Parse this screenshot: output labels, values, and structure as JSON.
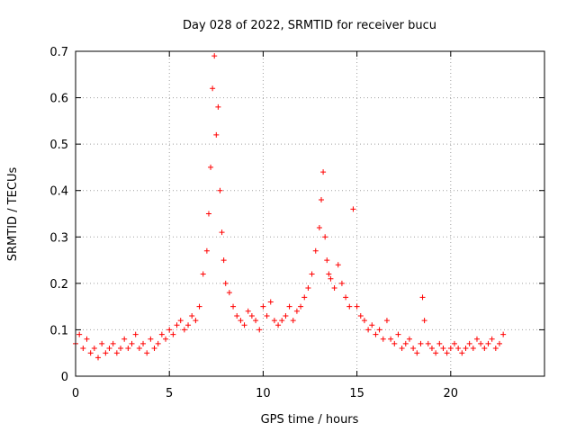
{
  "chart_data": {
    "type": "scatter",
    "title": "Day 028 of 2022, SRMTID for receiver bucu",
    "xlabel": "GPS time / hours",
    "ylabel": "SRMTID / TECUs",
    "xlim": [
      0,
      25
    ],
    "ylim": [
      0,
      0.7
    ],
    "x_ticks": [
      0,
      5,
      10,
      15,
      20
    ],
    "x_tick_labels": [
      "0",
      "5",
      "10",
      "15",
      "20"
    ],
    "y_ticks": [
      0,
      0.1,
      0.2,
      0.3,
      0.4,
      0.5,
      0.6,
      0.7
    ],
    "y_tick_labels": [
      "0",
      "0.1",
      "0.2",
      "0.3",
      "0.4",
      "0.5",
      "0.6",
      "0.7"
    ],
    "grid": true,
    "marker": "+",
    "color": "#ff0000",
    "series": [
      {
        "name": "SRMTID",
        "x": [
          0.0,
          0.2,
          0.4,
          0.6,
          0.8,
          1.0,
          1.2,
          1.4,
          1.6,
          1.8,
          2.0,
          2.2,
          2.4,
          2.6,
          2.8,
          3.0,
          3.2,
          3.4,
          3.6,
          3.8,
          4.0,
          4.2,
          4.4,
          4.6,
          4.8,
          5.0,
          5.2,
          5.4,
          5.6,
          5.8,
          6.0,
          6.2,
          6.4,
          6.6,
          6.8,
          7.0,
          7.1,
          7.2,
          7.3,
          7.4,
          7.5,
          7.6,
          7.7,
          7.8,
          7.9,
          8.0,
          8.2,
          8.4,
          8.6,
          8.8,
          9.0,
          9.2,
          9.4,
          9.6,
          9.8,
          10.0,
          10.2,
          10.4,
          10.6,
          10.8,
          11.0,
          11.2,
          11.4,
          11.6,
          11.8,
          12.0,
          12.2,
          12.4,
          12.6,
          12.8,
          13.0,
          13.1,
          13.2,
          13.3,
          13.4,
          13.5,
          13.6,
          13.8,
          14.0,
          14.2,
          14.4,
          14.6,
          14.8,
          15.0,
          15.2,
          15.4,
          15.6,
          15.8,
          16.0,
          16.2,
          16.4,
          16.6,
          16.8,
          17.0,
          17.2,
          17.4,
          17.6,
          17.8,
          18.0,
          18.2,
          18.4,
          18.5,
          18.6,
          18.8,
          19.0,
          19.2,
          19.4,
          19.6,
          19.8,
          20.0,
          20.2,
          20.4,
          20.6,
          20.8,
          21.0,
          21.2,
          21.4,
          21.6,
          21.8,
          22.0,
          22.2,
          22.4,
          22.6,
          22.8
        ],
        "y": [
          0.07,
          0.09,
          0.06,
          0.08,
          0.05,
          0.06,
          0.04,
          0.07,
          0.05,
          0.06,
          0.07,
          0.05,
          0.06,
          0.08,
          0.06,
          0.07,
          0.09,
          0.06,
          0.07,
          0.05,
          0.08,
          0.06,
          0.07,
          0.09,
          0.08,
          0.1,
          0.09,
          0.11,
          0.12,
          0.1,
          0.11,
          0.13,
          0.12,
          0.15,
          0.22,
          0.27,
          0.35,
          0.45,
          0.62,
          0.69,
          0.52,
          0.58,
          0.4,
          0.31,
          0.25,
          0.2,
          0.18,
          0.15,
          0.13,
          0.12,
          0.11,
          0.14,
          0.13,
          0.12,
          0.1,
          0.15,
          0.13,
          0.16,
          0.12,
          0.11,
          0.12,
          0.13,
          0.15,
          0.12,
          0.14,
          0.15,
          0.17,
          0.19,
          0.22,
          0.27,
          0.32,
          0.38,
          0.44,
          0.3,
          0.25,
          0.22,
          0.21,
          0.19,
          0.24,
          0.2,
          0.17,
          0.15,
          0.36,
          0.15,
          0.13,
          0.12,
          0.1,
          0.11,
          0.09,
          0.1,
          0.08,
          0.12,
          0.08,
          0.07,
          0.09,
          0.06,
          0.07,
          0.08,
          0.06,
          0.05,
          0.07,
          0.17,
          0.12,
          0.07,
          0.06,
          0.05,
          0.07,
          0.06,
          0.05,
          0.06,
          0.07,
          0.06,
          0.05,
          0.06,
          0.07,
          0.06,
          0.08,
          0.07,
          0.06,
          0.07,
          0.08,
          0.06,
          0.07,
          0.09
        ]
      }
    ]
  }
}
